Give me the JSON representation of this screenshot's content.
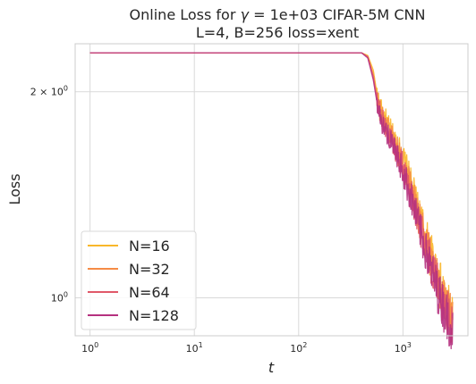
{
  "chart_data": {
    "type": "line",
    "title_line1_prefix": "Online Loss for ",
    "title_gamma": "γ",
    "title_line1_suffix": " = 1e+03 CIFAR-5M CNN",
    "title_line2": "L=4, B=256 loss=xent",
    "xlabel": "t",
    "ylabel": "Loss",
    "xscale": "log",
    "yscale": "log",
    "xlim": [
      0.72,
      4200
    ],
    "ylim": [
      0.88,
      2.35
    ],
    "x_ticks": [
      {
        "value": 1,
        "base": "10",
        "exp": "0"
      },
      {
        "value": 10,
        "base": "10",
        "exp": "1"
      },
      {
        "value": 100,
        "base": "10",
        "exp": "2"
      },
      {
        "value": 1000,
        "base": "10",
        "exp": "3"
      }
    ],
    "y_ticks": [
      {
        "value": 2,
        "base": "2 × 10",
        "exp": "0"
      },
      {
        "value": 1,
        "base": "10",
        "exp": "0"
      }
    ],
    "grid": true,
    "legend_position": "lower-left",
    "series": [
      {
        "name": "N=16",
        "color": "#f9b72a",
        "x": [
          1,
          100,
          400,
          460,
          520,
          560,
          600,
          700,
          800,
          1000,
          1300,
          1600,
          2000,
          2500,
          3000
        ],
        "y": [
          2.28,
          2.28,
          2.28,
          2.26,
          2.15,
          2.0,
          1.9,
          1.8,
          1.72,
          1.6,
          1.4,
          1.25,
          1.12,
          1.0,
          0.93
        ]
      },
      {
        "name": "N=32",
        "color": "#f68b45",
        "x": [
          1,
          100,
          400,
          460,
          520,
          560,
          600,
          700,
          800,
          1000,
          1300,
          1600,
          2000,
          2500,
          3000
        ],
        "y": [
          2.28,
          2.28,
          2.28,
          2.25,
          2.12,
          1.98,
          1.88,
          1.78,
          1.7,
          1.57,
          1.38,
          1.23,
          1.1,
          0.98,
          0.92
        ]
      },
      {
        "name": "N=64",
        "color": "#e05869",
        "x": [
          1,
          100,
          400,
          460,
          520,
          560,
          600,
          700,
          800,
          1000,
          1300,
          1600,
          2000,
          2500,
          3000
        ],
        "y": [
          2.28,
          2.28,
          2.28,
          2.25,
          2.1,
          1.96,
          1.86,
          1.76,
          1.68,
          1.55,
          1.36,
          1.21,
          1.08,
          0.97,
          0.91
        ]
      },
      {
        "name": "N=128",
        "color": "#b5317f",
        "x": [
          1,
          100,
          400,
          460,
          520,
          560,
          600,
          700,
          800,
          1000,
          1300,
          1600,
          2000,
          2500,
          3000
        ],
        "y": [
          2.28,
          2.28,
          2.28,
          2.24,
          2.08,
          1.94,
          1.84,
          1.74,
          1.66,
          1.53,
          1.34,
          1.19,
          1.06,
          0.96,
          0.9
        ]
      }
    ]
  }
}
